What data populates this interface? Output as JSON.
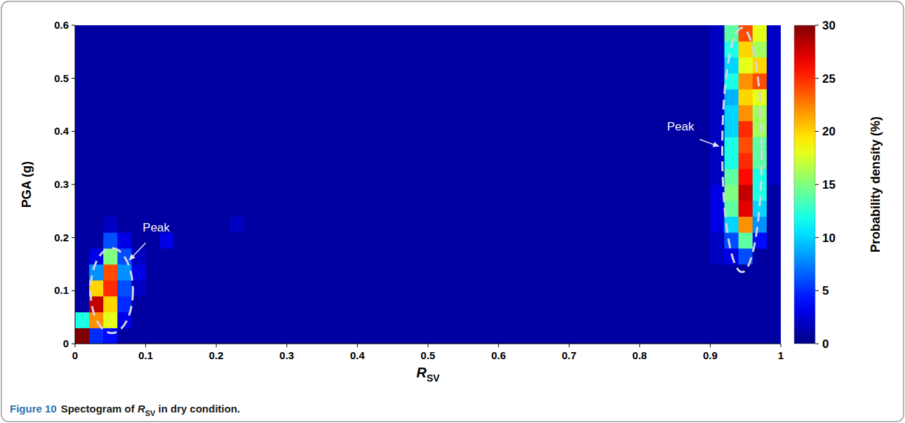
{
  "chart_data": {
    "type": "heatmap",
    "caption": {
      "label": "Figure 10",
      "parts": [
        "Spectogram of ",
        "RSV",
        " in dry condition."
      ]
    },
    "xlabel": "RSV",
    "ylabel": "PGA (g)",
    "xlim": [
      0,
      1
    ],
    "ylim": [
      0,
      0.6
    ],
    "xticks": [
      0,
      0.1,
      0.2,
      0.3,
      0.4,
      0.5,
      0.6,
      0.7,
      0.8,
      0.9,
      1
    ],
    "yticks": [
      0,
      0.1,
      0.2,
      0.3,
      0.4,
      0.5,
      0.6
    ],
    "grid": false,
    "annotations": [
      "Peak",
      "Peak"
    ],
    "x_bins": [
      0,
      0.02,
      0.04,
      0.06,
      0.08,
      0.1,
      0.12,
      0.14,
      0.16,
      0.18,
      0.2,
      0.22,
      0.24,
      0.26,
      0.28,
      0.3,
      0.32,
      0.34,
      0.36,
      0.38,
      0.4,
      0.42,
      0.44,
      0.46,
      0.48,
      0.5,
      0.52,
      0.54,
      0.56,
      0.58,
      0.6,
      0.62,
      0.64,
      0.66,
      0.68,
      0.7,
      0.72,
      0.74,
      0.76,
      0.78,
      0.8,
      0.82,
      0.84,
      0.86,
      0.88,
      0.9,
      0.92,
      0.94,
      0.96,
      0.98,
      1
    ],
    "y_bins": [
      0,
      0.03,
      0.06,
      0.09,
      0.12,
      0.15,
      0.18,
      0.21,
      0.24,
      0.27,
      0.3,
      0.33,
      0.36,
      0.39,
      0.42,
      0.45,
      0.48,
      0.51,
      0.54,
      0.57,
      0.6
    ],
    "cells": [
      [
        30,
        5,
        4,
        1,
        1,
        1,
        1,
        1,
        1,
        1,
        1,
        1,
        1,
        1,
        1,
        1,
        1,
        1,
        1,
        1,
        1,
        1,
        1,
        1,
        1,
        1,
        1,
        1,
        1,
        1,
        1,
        1,
        1,
        1,
        1,
        1,
        1,
        1,
        1,
        1,
        1,
        1,
        1,
        1,
        1,
        1,
        1,
        1,
        1,
        1
      ],
      [
        12,
        22,
        18,
        3,
        1,
        1,
        1,
        1,
        1,
        1,
        1,
        1,
        1,
        1,
        1,
        1,
        1,
        1,
        1,
        1,
        1,
        1,
        1,
        1,
        1,
        1,
        1,
        1,
        1,
        1,
        1,
        1,
        1,
        1,
        1,
        1,
        1,
        1,
        1,
        1,
        1,
        1,
        1,
        1,
        1,
        1,
        1,
        1,
        1,
        1
      ],
      [
        1,
        28,
        20,
        5,
        1,
        1,
        1,
        1,
        1,
        1,
        1,
        1,
        1,
        1,
        1,
        1,
        1,
        1,
        1,
        1,
        1,
        1,
        1,
        1,
        1,
        1,
        1,
        1,
        1,
        1,
        1,
        1,
        1,
        1,
        1,
        1,
        1,
        1,
        1,
        1,
        1,
        1,
        1,
        1,
        1,
        1,
        1,
        1,
        1,
        1
      ],
      [
        1,
        20,
        25,
        6,
        2,
        1,
        1,
        1,
        1,
        1,
        1,
        1,
        1,
        1,
        1,
        1,
        1,
        1,
        1,
        1,
        1,
        1,
        1,
        1,
        1,
        1,
        1,
        1,
        1,
        1,
        1,
        1,
        1,
        1,
        1,
        1,
        1,
        1,
        1,
        1,
        1,
        1,
        1,
        1,
        1,
        1,
        1,
        1,
        1,
        1
      ],
      [
        1,
        8,
        24,
        8,
        3,
        1,
        1,
        1,
        1,
        1,
        1,
        1,
        1,
        1,
        1,
        1,
        1,
        1,
        1,
        1,
        1,
        1,
        1,
        1,
        1,
        1,
        1,
        1,
        1,
        1,
        1,
        1,
        1,
        1,
        1,
        1,
        1,
        1,
        1,
        1,
        1,
        1,
        1,
        1,
        1,
        1,
        1,
        1,
        1,
        1
      ],
      [
        1,
        3,
        15,
        6,
        2,
        1,
        1,
        1,
        1,
        1,
        1,
        1,
        1,
        1,
        1,
        1,
        1,
        1,
        1,
        1,
        1,
        1,
        1,
        1,
        1,
        1,
        1,
        1,
        1,
        1,
        1,
        1,
        1,
        1,
        1,
        1,
        1,
        1,
        1,
        1,
        1,
        1,
        1,
        1,
        1,
        2,
        3,
        6,
        1,
        1
      ],
      [
        1,
        1,
        6,
        3,
        1,
        1,
        3,
        1,
        1,
        1,
        1,
        1,
        1,
        1,
        1,
        1,
        1,
        1,
        1,
        1,
        1,
        1,
        1,
        1,
        1,
        1,
        1,
        1,
        1,
        1,
        1,
        1,
        1,
        1,
        1,
        1,
        1,
        1,
        1,
        1,
        1,
        1,
        1,
        1,
        1,
        2,
        6,
        14,
        4,
        1
      ],
      [
        1,
        1,
        2,
        1,
        1,
        1,
        1,
        1,
        1,
        1,
        1,
        2,
        1,
        1,
        1,
        1,
        1,
        1,
        1,
        1,
        1,
        1,
        1,
        1,
        1,
        1,
        1,
        1,
        1,
        1,
        1,
        1,
        1,
        1,
        1,
        1,
        1,
        1,
        1,
        1,
        1,
        1,
        1,
        1,
        1,
        3,
        10,
        22,
        8,
        1
      ],
      [
        1,
        1,
        1,
        1,
        1,
        1,
        1,
        1,
        1,
        1,
        1,
        1,
        1,
        1,
        1,
        1,
        1,
        1,
        1,
        1,
        1,
        1,
        1,
        1,
        1,
        1,
        1,
        1,
        1,
        1,
        1,
        1,
        1,
        1,
        1,
        1,
        1,
        1,
        1,
        1,
        1,
        1,
        1,
        1,
        1,
        3,
        14,
        27,
        10,
        1
      ],
      [
        1,
        1,
        1,
        1,
        1,
        1,
        1,
        1,
        1,
        1,
        1,
        1,
        1,
        1,
        1,
        1,
        1,
        1,
        1,
        1,
        1,
        1,
        1,
        1,
        1,
        1,
        1,
        1,
        1,
        1,
        1,
        1,
        1,
        1,
        1,
        1,
        1,
        1,
        1,
        1,
        1,
        1,
        1,
        1,
        1,
        3,
        15,
        28,
        12,
        1
      ],
      [
        1,
        1,
        1,
        1,
        1,
        1,
        1,
        1,
        1,
        1,
        1,
        1,
        1,
        1,
        1,
        1,
        1,
        1,
        1,
        1,
        1,
        1,
        1,
        1,
        1,
        1,
        1,
        1,
        1,
        1,
        1,
        1,
        1,
        1,
        1,
        1,
        1,
        1,
        1,
        1,
        1,
        1,
        1,
        1,
        1,
        2,
        14,
        26,
        12,
        2
      ],
      [
        1,
        1,
        1,
        1,
        1,
        1,
        1,
        1,
        1,
        1,
        1,
        1,
        1,
        1,
        1,
        1,
        1,
        1,
        1,
        1,
        1,
        1,
        1,
        1,
        1,
        1,
        1,
        1,
        1,
        1,
        1,
        1,
        1,
        1,
        1,
        1,
        1,
        1,
        1,
        1,
        1,
        1,
        1,
        1,
        1,
        2,
        12,
        25,
        14,
        2
      ],
      [
        1,
        1,
        1,
        1,
        1,
        1,
        1,
        1,
        1,
        1,
        1,
        1,
        1,
        1,
        1,
        1,
        1,
        1,
        1,
        1,
        1,
        1,
        1,
        1,
        1,
        1,
        1,
        1,
        1,
        1,
        1,
        1,
        1,
        1,
        1,
        1,
        1,
        1,
        1,
        1,
        1,
        1,
        1,
        1,
        1,
        2,
        12,
        24,
        14,
        2
      ],
      [
        1,
        1,
        1,
        1,
        1,
        1,
        1,
        1,
        1,
        1,
        1,
        1,
        1,
        1,
        1,
        1,
        1,
        1,
        1,
        1,
        1,
        1,
        1,
        1,
        1,
        1,
        1,
        1,
        1,
        1,
        1,
        1,
        1,
        1,
        1,
        1,
        1,
        1,
        1,
        1,
        1,
        1,
        1,
        1,
        1,
        2,
        10,
        25,
        16,
        2
      ],
      [
        1,
        1,
        1,
        1,
        1,
        1,
        1,
        1,
        1,
        1,
        1,
        1,
        1,
        1,
        1,
        1,
        1,
        1,
        1,
        1,
        1,
        1,
        1,
        1,
        1,
        1,
        1,
        1,
        1,
        1,
        1,
        1,
        1,
        1,
        1,
        1,
        1,
        1,
        1,
        1,
        1,
        1,
        1,
        1,
        1,
        2,
        10,
        22,
        16,
        2
      ],
      [
        1,
        1,
        1,
        1,
        1,
        1,
        1,
        1,
        1,
        1,
        1,
        1,
        1,
        1,
        1,
        1,
        1,
        1,
        1,
        1,
        1,
        1,
        1,
        1,
        1,
        1,
        1,
        1,
        1,
        1,
        1,
        1,
        1,
        1,
        1,
        1,
        1,
        1,
        1,
        1,
        1,
        1,
        1,
        1,
        1,
        2,
        9,
        20,
        18,
        2
      ],
      [
        1,
        1,
        1,
        1,
        1,
        1,
        1,
        1,
        1,
        1,
        1,
        1,
        1,
        1,
        1,
        1,
        1,
        1,
        1,
        1,
        1,
        1,
        1,
        1,
        1,
        1,
        1,
        1,
        1,
        1,
        1,
        1,
        1,
        1,
        1,
        1,
        1,
        1,
        1,
        1,
        1,
        1,
        1,
        1,
        1,
        2,
        12,
        22,
        24,
        2
      ],
      [
        1,
        1,
        1,
        1,
        1,
        1,
        1,
        1,
        1,
        1,
        1,
        1,
        1,
        1,
        1,
        1,
        1,
        1,
        1,
        1,
        1,
        1,
        1,
        1,
        1,
        1,
        1,
        1,
        1,
        1,
        1,
        1,
        1,
        1,
        1,
        1,
        1,
        1,
        1,
        1,
        1,
        1,
        1,
        1,
        1,
        2,
        10,
        18,
        20,
        2
      ],
      [
        1,
        1,
        1,
        1,
        1,
        1,
        1,
        1,
        1,
        1,
        1,
        1,
        1,
        1,
        1,
        1,
        1,
        1,
        1,
        1,
        1,
        1,
        1,
        1,
        1,
        1,
        1,
        1,
        1,
        1,
        1,
        1,
        1,
        1,
        1,
        1,
        1,
        1,
        1,
        1,
        1,
        1,
        1,
        1,
        1,
        2,
        12,
        20,
        16,
        2
      ],
      [
        1,
        1,
        1,
        1,
        1,
        1,
        1,
        1,
        1,
        1,
        1,
        1,
        1,
        1,
        1,
        1,
        1,
        1,
        1,
        1,
        1,
        1,
        1,
        1,
        1,
        1,
        1,
        1,
        1,
        1,
        1,
        1,
        1,
        1,
        1,
        1,
        1,
        1,
        1,
        1,
        1,
        1,
        1,
        1,
        1,
        2,
        14,
        24,
        18,
        2
      ]
    ],
    "colorbar": {
      "label": "Probability density (%)",
      "range": [
        0,
        30
      ],
      "ticks": [
        0,
        5,
        10,
        15,
        20,
        25,
        30
      ]
    }
  }
}
